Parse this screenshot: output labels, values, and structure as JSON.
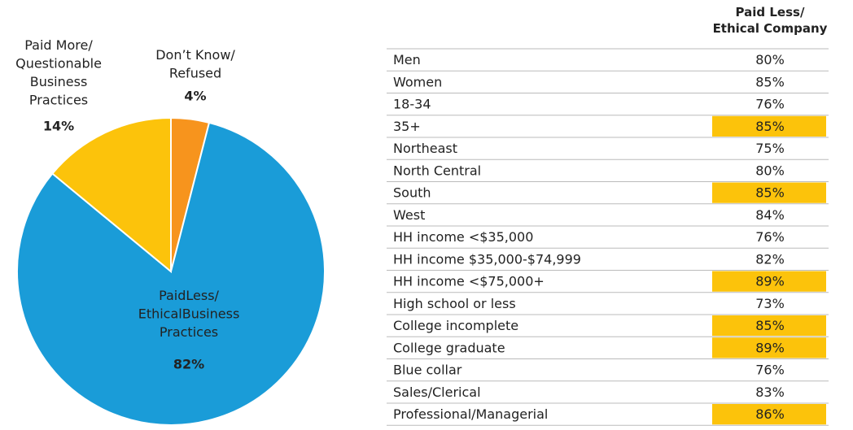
{
  "chart_data": {
    "type": "pie",
    "categories": [
      "Don’t Know/\nRefused",
      "PaidLess/\nEthicalBusiness\nPractices",
      "Paid More/\nQuestionable\nBusiness\nPractices"
    ],
    "values": [
      4,
      82,
      14
    ],
    "value_labels": [
      "4%",
      "82%",
      "14%"
    ],
    "colors": [
      "#f7941d",
      "#1a9cd8",
      "#fcc30b"
    ]
  },
  "table": {
    "header": "Paid Less/\nEthical Company",
    "highlight_color": "#fcc30b",
    "rows": [
      {
        "label": "Men",
        "value": "80%",
        "highlight": false
      },
      {
        "label": "Women",
        "value": "85%",
        "highlight": false
      },
      {
        "label": "18-34",
        "value": "76%",
        "highlight": false
      },
      {
        "label": "35+",
        "value": "85%",
        "highlight": true
      },
      {
        "label": "Northeast",
        "value": "75%",
        "highlight": false
      },
      {
        "label": "North Central",
        "value": "80%",
        "highlight": false
      },
      {
        "label": "South",
        "value": "85%",
        "highlight": true
      },
      {
        "label": "West",
        "value": "84%",
        "highlight": false
      },
      {
        "label": "HH income <$35,000",
        "value": "76%",
        "highlight": false
      },
      {
        "label": "HH income $35,000-$74,999",
        "value": "82%",
        "highlight": false
      },
      {
        "label": "HH income <$75,000+",
        "value": "89%",
        "highlight": true
      },
      {
        "label": "High school or less",
        "value": "73%",
        "highlight": false
      },
      {
        "label": "College incomplete",
        "value": "85%",
        "highlight": true
      },
      {
        "label": "College graduate",
        "value": "89%",
        "highlight": true
      },
      {
        "label": "Blue collar",
        "value": "76%",
        "highlight": false
      },
      {
        "label": "Sales/Clerical",
        "value": "83%",
        "highlight": false
      },
      {
        "label": "Professional/Managerial",
        "value": "86%",
        "highlight": true
      }
    ]
  }
}
